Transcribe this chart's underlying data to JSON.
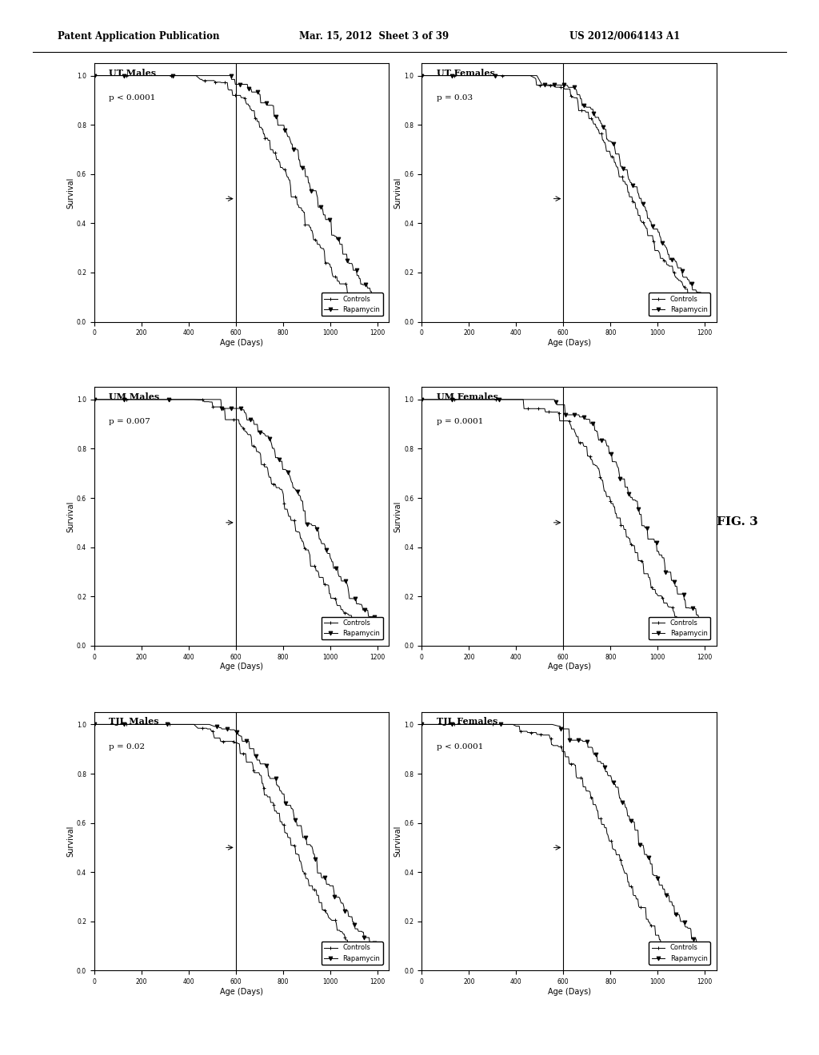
{
  "page_header_left": "Patent Application Publication",
  "page_header_mid": "Mar. 15, 2012  Sheet 3 of 39",
  "page_header_right": "US 2012/0064143 A1",
  "fig_label": "FIG. 3",
  "plots": [
    {
      "title": "UT Males",
      "pval": "p < 0.0001",
      "row": 0,
      "col": 0
    },
    {
      "title": "UT Females",
      "pval": "p = 0.03",
      "row": 0,
      "col": 1
    },
    {
      "title": "UM Males",
      "pval": "p = 0.007",
      "row": 1,
      "col": 0
    },
    {
      "title": "UM Females",
      "pval": "p = 0.0001",
      "row": 1,
      "col": 1
    },
    {
      "title": "TJL Males",
      "pval": "p = 0.02",
      "row": 2,
      "col": 0
    },
    {
      "title": "TJL Females",
      "pval": "p < 0.0001",
      "row": 2,
      "col": 1
    }
  ],
  "xlabel": "Age (Days)",
  "ylabel": "Survival",
  "age_min": 0,
  "age_max": 1200,
  "surv_min": 0.0,
  "surv_max": 1.0,
  "age_ticks": [
    0,
    200,
    400,
    600,
    800,
    1000,
    1200
  ],
  "surv_ticks": [
    0.0,
    0.2,
    0.4,
    0.6,
    0.8,
    1.0
  ],
  "legend_labels": [
    "Controls",
    "Rapamycin"
  ],
  "bg_color": "#ffffff",
  "median_age": 600
}
